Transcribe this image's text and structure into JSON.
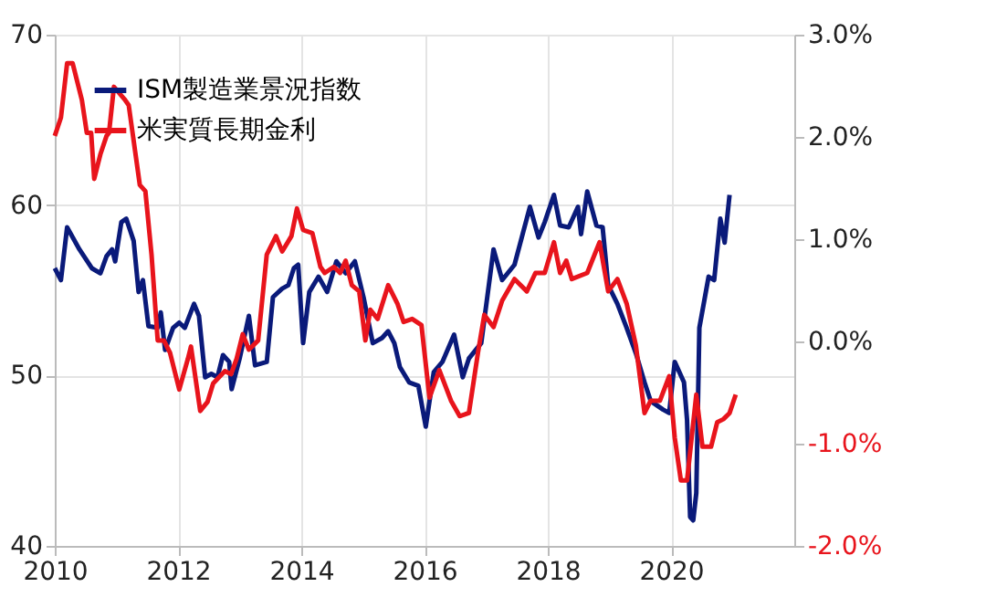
{
  "chart_data": {
    "type": "line",
    "xlim": [
      2010,
      2022
    ],
    "xticks": [
      2010,
      2012,
      2014,
      2016,
      2018,
      2020
    ],
    "ylim": [
      40,
      70
    ],
    "yticks": [
      40,
      50,
      60,
      70
    ],
    "y2lim": [
      -2,
      3
    ],
    "y2ticks": [
      {
        "value": -2,
        "label": "-2.0%"
      },
      {
        "value": -1,
        "label": "-1.0%"
      },
      {
        "value": 0,
        "label": "0.0%"
      },
      {
        "value": 1,
        "label": "1.0%"
      },
      {
        "value": 2,
        "label": "2.0%"
      },
      {
        "value": 3,
        "label": "3.0%"
      }
    ],
    "grid": true,
    "legend": "top left",
    "line_style": "solid",
    "marker": "none",
    "series": [
      {
        "name": "ISM製造業景況指数",
        "color": "#0a1a7a",
        "x": [
          2010.0,
          2010.1,
          2010.2,
          2010.4,
          2010.6,
          2010.74,
          2010.84,
          2010.93,
          2010.98,
          2011.08,
          2011.16,
          2011.28,
          2011.36,
          2011.43,
          2011.52,
          2011.67,
          2011.72,
          2011.79,
          2011.92,
          2012.02,
          2012.11,
          2012.26,
          2012.34,
          2012.44,
          2012.54,
          2012.64,
          2012.73,
          2012.83,
          2012.87,
          2013.0,
          2013.15,
          2013.25,
          2013.44,
          2013.54,
          2013.69,
          2013.79,
          2013.88,
          2013.95,
          2014.03,
          2014.13,
          2014.28,
          2014.42,
          2014.57,
          2014.72,
          2014.87,
          2015.01,
          2015.16,
          2015.31,
          2015.41,
          2015.51,
          2015.6,
          2015.75,
          2015.9,
          2016.02,
          2016.15,
          2016.29,
          2016.48,
          2016.62,
          2016.72,
          2016.92,
          2017.12,
          2017.26,
          2017.46,
          2017.71,
          2017.85,
          2017.95,
          2018.1,
          2018.2,
          2018.34,
          2018.49,
          2018.54,
          2018.64,
          2018.79,
          2018.89,
          2018.98,
          2019.13,
          2019.28,
          2019.43,
          2019.57,
          2019.67,
          2019.87,
          2019.97,
          2020.06,
          2020.21,
          2020.26,
          2020.31,
          2020.36,
          2020.41,
          2020.46,
          2020.61,
          2020.7,
          2020.8,
          2020.87,
          2020.95
        ],
        "values": [
          56.3,
          55.6,
          58.7,
          57.4,
          56.3,
          56.0,
          57.0,
          57.4,
          56.7,
          59.0,
          59.2,
          57.9,
          54.9,
          55.6,
          52.9,
          52.8,
          53.7,
          51.5,
          52.8,
          53.1,
          52.8,
          54.2,
          53.5,
          49.9,
          50.1,
          49.9,
          51.2,
          50.8,
          49.2,
          51.0,
          53.5,
          50.6,
          50.8,
          54.6,
          55.1,
          55.3,
          56.3,
          56.5,
          51.9,
          54.9,
          55.8,
          54.9,
          56.7,
          56.0,
          56.7,
          54.6,
          51.9,
          52.2,
          52.6,
          51.9,
          50.5,
          49.6,
          49.4,
          47.0,
          50.2,
          50.8,
          52.4,
          49.9,
          51.0,
          51.9,
          57.4,
          55.6,
          56.5,
          59.9,
          58.1,
          59.0,
          60.6,
          58.8,
          58.7,
          59.9,
          58.3,
          60.8,
          58.8,
          58.7,
          55.3,
          54.2,
          52.8,
          51.3,
          49.6,
          48.5,
          48.0,
          47.8,
          50.8,
          49.6,
          47.4,
          41.7,
          41.5,
          43.1,
          52.8,
          55.8,
          55.6,
          59.2,
          57.8,
          60.6
        ]
      },
      {
        "name": "米実質長期金利",
        "color": "#e8141c",
        "axis": "y2",
        "x": [
          2010.0,
          2010.1,
          2010.2,
          2010.29,
          2010.44,
          2010.52,
          2010.59,
          2010.64,
          2010.74,
          2010.84,
          2010.88,
          2010.96,
          2011.13,
          2011.2,
          2011.38,
          2011.47,
          2011.57,
          2011.67,
          2011.77,
          2011.87,
          2012.02,
          2012.16,
          2012.21,
          2012.36,
          2012.48,
          2012.57,
          2012.76,
          2012.86,
          2012.95,
          2013.05,
          2013.15,
          2013.3,
          2013.44,
          2013.59,
          2013.69,
          2013.84,
          2013.93,
          2014.03,
          2014.18,
          2014.31,
          2014.38,
          2014.53,
          2014.63,
          2014.72,
          2014.82,
          2014.94,
          2015.04,
          2015.12,
          2015.24,
          2015.41,
          2015.56,
          2015.66,
          2015.8,
          2015.95,
          2016.08,
          2016.24,
          2016.43,
          2016.57,
          2016.72,
          2016.87,
          2016.97,
          2017.12,
          2017.26,
          2017.46,
          2017.66,
          2017.8,
          2017.95,
          2018.1,
          2018.2,
          2018.3,
          2018.39,
          2018.64,
          2018.84,
          2018.98,
          2019.13,
          2019.28,
          2019.43,
          2019.57,
          2019.67,
          2019.82,
          2019.97,
          2020.06,
          2020.16,
          2020.26,
          2020.41,
          2020.51,
          2020.65,
          2020.75,
          2020.85,
          2020.95,
          2021.05
        ],
        "values": [
          2.01,
          2.19,
          2.72,
          2.72,
          2.36,
          2.04,
          2.04,
          1.59,
          1.83,
          2.01,
          2.04,
          2.49,
          2.37,
          2.31,
          1.53,
          1.47,
          0.85,
          0.01,
          0.01,
          -0.11,
          -0.47,
          -0.17,
          -0.05,
          -0.68,
          -0.59,
          -0.41,
          -0.29,
          -0.32,
          -0.17,
          0.07,
          -0.08,
          0.01,
          0.85,
          1.03,
          0.88,
          1.03,
          1.3,
          1.09,
          1.06,
          0.73,
          0.67,
          0.73,
          0.67,
          0.79,
          0.55,
          0.49,
          0.01,
          0.31,
          0.22,
          0.55,
          0.37,
          0.19,
          0.22,
          0.16,
          -0.55,
          -0.28,
          -0.58,
          -0.73,
          -0.7,
          -0.1,
          0.26,
          0.14,
          0.4,
          0.61,
          0.49,
          0.67,
          0.67,
          0.97,
          0.67,
          0.79,
          0.61,
          0.67,
          0.97,
          0.49,
          0.61,
          0.37,
          -0.04,
          -0.7,
          -0.58,
          -0.58,
          -0.34,
          -0.94,
          -1.36,
          -1.36,
          -0.52,
          -1.03,
          -1.03,
          -0.79,
          -0.76,
          -0.7,
          -0.52
        ]
      }
    ]
  }
}
